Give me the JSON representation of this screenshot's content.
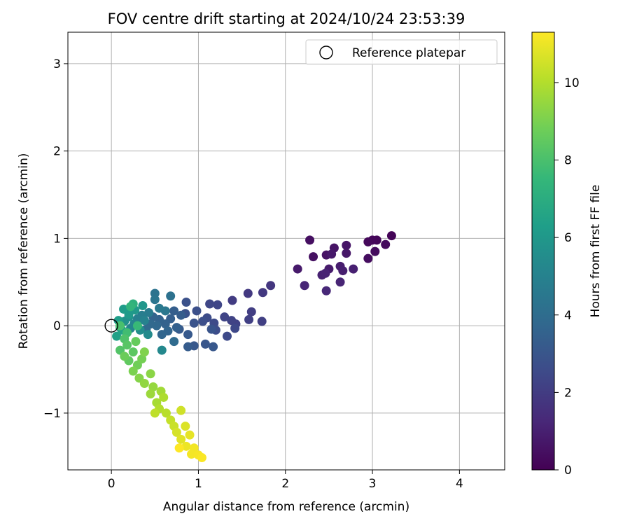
{
  "chart_data": {
    "type": "scatter",
    "title": "FOV centre drift starting at 2024/10/24 23:53:39",
    "xlabel": "Angular distance from reference (arcmin)",
    "ylabel": "Rotation from reference (arcmin)",
    "xlim": [
      -0.5,
      4.52
    ],
    "ylim": [
      -1.65,
      3.36
    ],
    "xticks": [
      0,
      1,
      2,
      3,
      4
    ],
    "yticks": [
      -1,
      0,
      1,
      2,
      3
    ],
    "xtick_labels": [
      "0",
      "1",
      "2",
      "3",
      "4"
    ],
    "ytick_labels": [
      "−1",
      "0",
      "1",
      "2",
      "3"
    ],
    "grid": true,
    "legend": {
      "position": "top-right",
      "entries": [
        {
          "label": "Reference platepar",
          "marker": "open-circle"
        }
      ]
    },
    "reference_point": {
      "x": 0,
      "y": 0
    },
    "colorbar": {
      "label": "Hours from first FF file",
      "range": [
        0,
        11.3
      ],
      "ticks": [
        0,
        2,
        4,
        6,
        8,
        10
      ],
      "tick_labels": [
        "0",
        "2",
        "4",
        "6",
        "8",
        "10"
      ],
      "colormap": "viridis",
      "stops": [
        "#440154",
        "#482878",
        "#3e4a89",
        "#31688e",
        "#26828e",
        "#1f9e89",
        "#35b779",
        "#6ece58",
        "#b5de2b",
        "#fde725"
      ]
    },
    "points": [
      {
        "x": 3.22,
        "y": 1.03,
        "h": 0.1
      },
      {
        "x": 3.05,
        "y": 0.98,
        "h": 0.15
      },
      {
        "x": 3.0,
        "y": 0.98,
        "h": 0.2
      },
      {
        "x": 2.95,
        "y": 0.96,
        "h": 0.25
      },
      {
        "x": 3.15,
        "y": 0.93,
        "h": 0.3
      },
      {
        "x": 3.03,
        "y": 0.85,
        "h": 0.35
      },
      {
        "x": 2.95,
        "y": 0.77,
        "h": 0.4
      },
      {
        "x": 2.28,
        "y": 0.98,
        "h": 0.45
      },
      {
        "x": 2.32,
        "y": 0.79,
        "h": 0.5
      },
      {
        "x": 2.47,
        "y": 0.81,
        "h": 0.55
      },
      {
        "x": 2.56,
        "y": 0.89,
        "h": 0.6
      },
      {
        "x": 2.7,
        "y": 0.92,
        "h": 0.65
      },
      {
        "x": 2.7,
        "y": 0.83,
        "h": 0.7
      },
      {
        "x": 2.53,
        "y": 0.82,
        "h": 0.75
      },
      {
        "x": 2.14,
        "y": 0.65,
        "h": 0.8
      },
      {
        "x": 2.5,
        "y": 0.65,
        "h": 0.85
      },
      {
        "x": 2.63,
        "y": 0.68,
        "h": 0.9
      },
      {
        "x": 2.66,
        "y": 0.63,
        "h": 0.95
      },
      {
        "x": 2.78,
        "y": 0.65,
        "h": 1.0
      },
      {
        "x": 2.42,
        "y": 0.58,
        "h": 1.05
      },
      {
        "x": 2.46,
        "y": 0.6,
        "h": 1.1
      },
      {
        "x": 2.63,
        "y": 0.5,
        "h": 1.15
      },
      {
        "x": 2.22,
        "y": 0.46,
        "h": 1.2
      },
      {
        "x": 2.47,
        "y": 0.4,
        "h": 1.25
      },
      {
        "x": 1.83,
        "y": 0.46,
        "h": 1.8
      },
      {
        "x": 1.74,
        "y": 0.38,
        "h": 1.85
      },
      {
        "x": 1.57,
        "y": 0.37,
        "h": 1.9
      },
      {
        "x": 1.39,
        "y": 0.29,
        "h": 2.0
      },
      {
        "x": 1.61,
        "y": 0.16,
        "h": 2.05
      },
      {
        "x": 1.73,
        "y": 0.05,
        "h": 2.1
      },
      {
        "x": 1.58,
        "y": 0.07,
        "h": 2.15
      },
      {
        "x": 1.43,
        "y": 0.02,
        "h": 2.2
      },
      {
        "x": 1.38,
        "y": 0.06,
        "h": 2.25
      },
      {
        "x": 1.3,
        "y": 0.1,
        "h": 2.3
      },
      {
        "x": 1.22,
        "y": 0.24,
        "h": 2.35
      },
      {
        "x": 1.13,
        "y": 0.25,
        "h": 2.4
      },
      {
        "x": 1.42,
        "y": -0.03,
        "h": 2.45
      },
      {
        "x": 1.33,
        "y": -0.12,
        "h": 2.5
      },
      {
        "x": 1.18,
        "y": 0.03,
        "h": 2.55
      },
      {
        "x": 1.1,
        "y": 0.09,
        "h": 2.6
      },
      {
        "x": 1.2,
        "y": -0.05,
        "h": 2.65
      },
      {
        "x": 1.05,
        "y": 0.05,
        "h": 2.7
      },
      {
        "x": 0.98,
        "y": 0.17,
        "h": 2.75
      },
      {
        "x": 0.86,
        "y": 0.27,
        "h": 2.8
      },
      {
        "x": 0.85,
        "y": 0.14,
        "h": 2.85
      },
      {
        "x": 0.95,
        "y": 0.03,
        "h": 2.9
      },
      {
        "x": 1.15,
        "y": -0.04,
        "h": 2.95
      },
      {
        "x": 1.08,
        "y": -0.21,
        "h": 3.0
      },
      {
        "x": 1.17,
        "y": -0.24,
        "h": 3.05
      },
      {
        "x": 0.95,
        "y": -0.23,
        "h": 3.1
      },
      {
        "x": 0.88,
        "y": -0.1,
        "h": 3.15
      },
      {
        "x": 0.78,
        "y": -0.04,
        "h": 3.2
      },
      {
        "x": 0.88,
        "y": -0.24,
        "h": 3.25
      },
      {
        "x": 0.8,
        "y": 0.12,
        "h": 3.3
      },
      {
        "x": 0.72,
        "y": 0.17,
        "h": 3.35
      },
      {
        "x": 0.68,
        "y": 0.08,
        "h": 3.4
      },
      {
        "x": 0.75,
        "y": -0.02,
        "h": 3.45
      },
      {
        "x": 0.62,
        "y": 0.02,
        "h": 3.5
      },
      {
        "x": 0.55,
        "y": 0.07,
        "h": 3.55
      },
      {
        "x": 0.48,
        "y": 0.1,
        "h": 3.6
      },
      {
        "x": 0.65,
        "y": -0.06,
        "h": 3.65
      },
      {
        "x": 0.58,
        "y": -0.1,
        "h": 3.7
      },
      {
        "x": 0.52,
        "y": 0.0,
        "h": 3.75
      },
      {
        "x": 0.45,
        "y": 0.02,
        "h": 3.8
      },
      {
        "x": 0.4,
        "y": -0.04,
        "h": 3.85
      },
      {
        "x": 0.72,
        "y": -0.18,
        "h": 3.9
      },
      {
        "x": 0.68,
        "y": 0.34,
        "h": 4.2
      },
      {
        "x": 0.5,
        "y": 0.37,
        "h": 4.3
      },
      {
        "x": 0.5,
        "y": 0.3,
        "h": 4.4
      },
      {
        "x": 0.62,
        "y": 0.17,
        "h": 4.5
      },
      {
        "x": 0.55,
        "y": 0.2,
        "h": 4.6
      },
      {
        "x": 0.43,
        "y": 0.15,
        "h": 4.7
      },
      {
        "x": 0.35,
        "y": 0.12,
        "h": 4.8
      },
      {
        "x": 0.3,
        "y": 0.08,
        "h": 4.9
      },
      {
        "x": 0.38,
        "y": 0.06,
        "h": 5.0
      },
      {
        "x": 0.26,
        "y": 0.02,
        "h": 5.1
      },
      {
        "x": 0.22,
        "y": -0.03,
        "h": 5.2
      },
      {
        "x": 0.58,
        "y": -0.28,
        "h": 5.3
      },
      {
        "x": 0.42,
        "y": -0.1,
        "h": 5.4
      },
      {
        "x": 0.33,
        "y": -0.05,
        "h": 5.5
      },
      {
        "x": 0.2,
        "y": 0.1,
        "h": 5.6
      },
      {
        "x": 0.15,
        "y": 0.05,
        "h": 5.7
      },
      {
        "x": 0.1,
        "y": -0.02,
        "h": 5.8
      },
      {
        "x": 0.36,
        "y": 0.23,
        "h": 5.9
      },
      {
        "x": 0.27,
        "y": 0.18,
        "h": 6.0
      },
      {
        "x": 0.2,
        "y": 0.13,
        "h": 6.1
      },
      {
        "x": 0.14,
        "y": 0.19,
        "h": 6.2
      },
      {
        "x": 0.08,
        "y": 0.06,
        "h": 6.3
      },
      {
        "x": 0.06,
        "y": -0.12,
        "h": 6.4
      },
      {
        "x": 0.12,
        "y": -0.05,
        "h": 6.5
      },
      {
        "x": 0.25,
        "y": 0.25,
        "h": 7.2
      },
      {
        "x": 0.22,
        "y": 0.22,
        "h": 7.4
      },
      {
        "x": 0.3,
        "y": 0.0,
        "h": 7.6
      },
      {
        "x": 0.18,
        "y": -0.08,
        "h": 7.8
      },
      {
        "x": 0.1,
        "y": 0.0,
        "h": 8.0
      },
      {
        "x": 0.15,
        "y": -0.15,
        "h": 8.1
      },
      {
        "x": 0.1,
        "y": -0.28,
        "h": 8.2
      },
      {
        "x": 0.18,
        "y": -0.22,
        "h": 8.3
      },
      {
        "x": 0.25,
        "y": -0.3,
        "h": 8.4
      },
      {
        "x": 0.2,
        "y": -0.4,
        "h": 8.5
      },
      {
        "x": 0.28,
        "y": -0.18,
        "h": 8.6
      },
      {
        "x": 0.15,
        "y": -0.35,
        "h": 8.7
      },
      {
        "x": 0.3,
        "y": -0.45,
        "h": 8.8
      },
      {
        "x": 0.35,
        "y": -0.38,
        "h": 8.9
      },
      {
        "x": 0.25,
        "y": -0.52,
        "h": 9.0
      },
      {
        "x": 0.38,
        "y": -0.3,
        "h": 9.1
      },
      {
        "x": 0.32,
        "y": -0.6,
        "h": 9.2
      },
      {
        "x": 0.45,
        "y": -0.55,
        "h": 9.3
      },
      {
        "x": 0.38,
        "y": -0.66,
        "h": 9.4
      },
      {
        "x": 0.48,
        "y": -0.7,
        "h": 9.5
      },
      {
        "x": 0.45,
        "y": -0.78,
        "h": 9.6
      },
      {
        "x": 0.57,
        "y": -0.75,
        "h": 9.7
      },
      {
        "x": 0.52,
        "y": -0.88,
        "h": 9.8
      },
      {
        "x": 0.6,
        "y": -0.82,
        "h": 9.9
      },
      {
        "x": 0.55,
        "y": -0.95,
        "h": 10.0
      },
      {
        "x": 0.63,
        "y": -1.0,
        "h": 10.1
      },
      {
        "x": 0.5,
        "y": -1.0,
        "h": 10.2
      },
      {
        "x": 0.68,
        "y": -1.08,
        "h": 10.3
      },
      {
        "x": 0.72,
        "y": -1.15,
        "h": 10.4
      },
      {
        "x": 0.8,
        "y": -0.97,
        "h": 10.5
      },
      {
        "x": 0.75,
        "y": -1.22,
        "h": 10.6
      },
      {
        "x": 0.85,
        "y": -1.15,
        "h": 10.7
      },
      {
        "x": 0.8,
        "y": -1.3,
        "h": 10.8
      },
      {
        "x": 0.9,
        "y": -1.25,
        "h": 10.9
      },
      {
        "x": 0.86,
        "y": -1.38,
        "h": 11.0
      },
      {
        "x": 0.95,
        "y": -1.4,
        "h": 11.1
      },
      {
        "x": 0.92,
        "y": -1.47,
        "h": 11.15
      },
      {
        "x": 1.0,
        "y": -1.48,
        "h": 11.2
      },
      {
        "x": 1.04,
        "y": -1.51,
        "h": 11.25
      },
      {
        "x": 0.78,
        "y": -1.4,
        "h": 11.3
      }
    ]
  }
}
